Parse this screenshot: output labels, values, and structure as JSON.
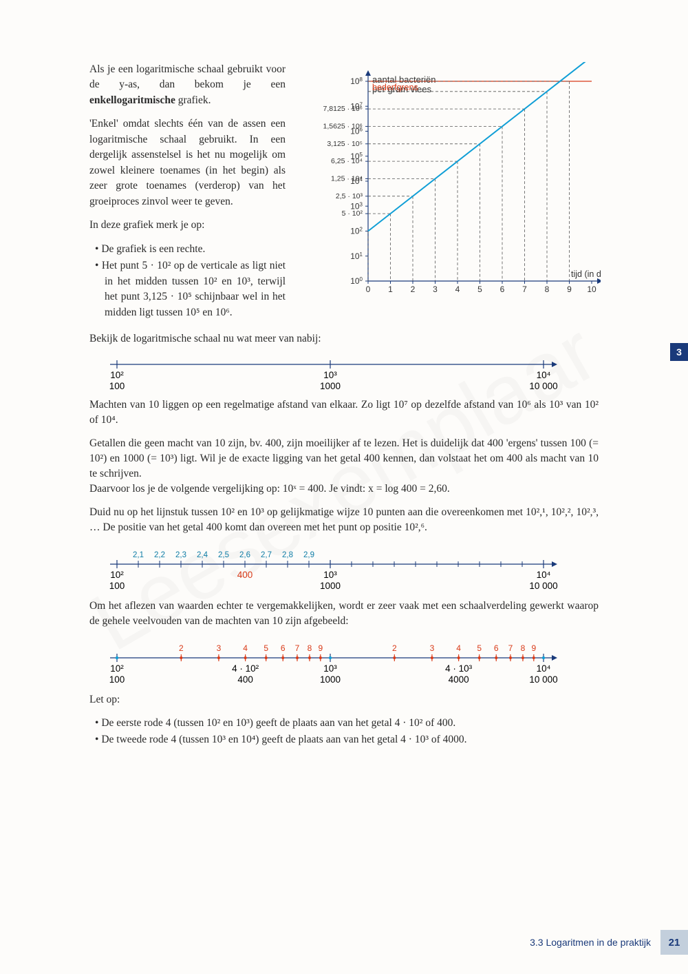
{
  "watermark": "Leesexemplaar",
  "tab": "3",
  "intro": {
    "p1a": "Als je een logaritmische schaal gebruikt voor de y-as, dan bekom je een ",
    "p1b": "enkellogaritmische",
    "p1c": " grafiek.",
    "p2": "'Enkel' omdat slechts één van de assen een logaritmische schaal gebruikt. In een dergelijk assenstelsel is het nu mogelijk om zowel kleinere toenames (in het begin) als zeer grote toenames (verderop) van het groeiproces zinvol weer te geven.",
    "p3": "In deze grafiek merk je op:",
    "b1": "De grafiek is een rechte.",
    "b2": "Het punt 5 · 10² op de verticale as ligt niet in het midden tussen 10² en 10³, terwijl het punt 3,125 · 10⁵ schijnbaar wel in het midden ligt tussen 10⁵ en 10⁶."
  },
  "chart1": {
    "title1": "aantal bacteriën",
    "title2": "per gram vlees",
    "bederf": "bederfgrens",
    "xlabel": "tijd (in dagen)",
    "xmax": 10,
    "ymax_exp": 8,
    "y_extra": [
      "7,8125 · 10⁶",
      "1,5625 · 10⁶",
      "3,125 · 10⁵",
      "6,25 · 10⁴",
      "1,25 · 10⁴",
      "2,5 · 10³",
      "5 · 10²"
    ],
    "line_color": "#0f9ed6",
    "bederf_color": "#d93a18",
    "grid_color": "#555",
    "axis_color": "#1a3a7a"
  },
  "mid": {
    "p1": "Bekijk de logaritmische schaal nu wat meer van nabij:",
    "p2": "Machten van 10 liggen op een regelmatige afstand van elkaar. Zo ligt 10⁷ op dezelfde afstand van 10⁶ als 10³ van 10² of 10⁴.",
    "p3": "Getallen die geen macht van 10 zijn, bv. 400, zijn moeilijker af te lezen. Het is duidelijk dat 400 'ergens' tussen 100 (= 10²) en 1000 (= 10³) ligt. Wil je de exacte ligging van het getal 400 kennen, dan volstaat het om 400 als macht van 10 te schrijven.",
    "p4": "Daarvoor los je de volgende vergelijking op: 10ˣ = 400. Je vindt: x = log 400 = 2,60.",
    "p5": "Duid nu op het lijnstuk tussen 10² en 10³ op gelijkmatige wijze 10 punten aan die overeenkomen met 10²,¹, 10²,², 10²,³, … De positie van het getal 400 komt dan overeen met het punt op positie 10²,⁶.",
    "p6": "Om het aflezen van waarden echter te vergemakkelijken, wordt er zeer vaak met een schaalverdeling gewerkt waarop de gehele veelvouden van de machten van 10 zijn afgebeeld:",
    "p7": "Let op:",
    "b1": "De eerste rode 4 (tussen 10² en 10³) geeft de plaats aan van het getal 4 · 10² of 400.",
    "b2": "De tweede rode 4 (tussen 10³ en 10⁴) geeft de plaats aan van het getal 4 · 10³ of 4000."
  },
  "scale1": {
    "majors": [
      {
        "x": 0,
        "top": "10²",
        "bot": "100"
      },
      {
        "x": 1,
        "top": "10³",
        "bot": "1000"
      },
      {
        "x": 2,
        "top": "10⁴",
        "bot": "10 000"
      }
    ]
  },
  "scale2": {
    "majors": [
      {
        "x": 0,
        "top": "10²",
        "bot": "100"
      },
      {
        "x": 1,
        "top": "10³",
        "bot": "1000"
      },
      {
        "x": 2,
        "top": "10⁴",
        "bot": "10 000"
      }
    ],
    "tenths": [
      "2,1",
      "2,2",
      "2,3",
      "2,4",
      "2,5",
      "2,6",
      "2,7",
      "2,8",
      "2,9"
    ],
    "mark400": "400"
  },
  "scale3": {
    "majors": [
      {
        "x": 0,
        "top": "10²",
        "bot": "100"
      },
      {
        "x": 1,
        "top": "10³",
        "bot": "1000"
      },
      {
        "x": 2,
        "top": "10⁴",
        "bot": "10 000"
      }
    ],
    "extra": [
      {
        "segx": 0.602,
        "top": "4 · 10²",
        "bot": "400"
      },
      {
        "segx": 1.602,
        "top": "4 · 10³",
        "bot": "4000"
      }
    ],
    "logticks": [
      2,
      3,
      4,
      5,
      6,
      7,
      8,
      9
    ]
  },
  "footer": {
    "section": "3.3  Logaritmen in de praktijk",
    "page": "21"
  }
}
